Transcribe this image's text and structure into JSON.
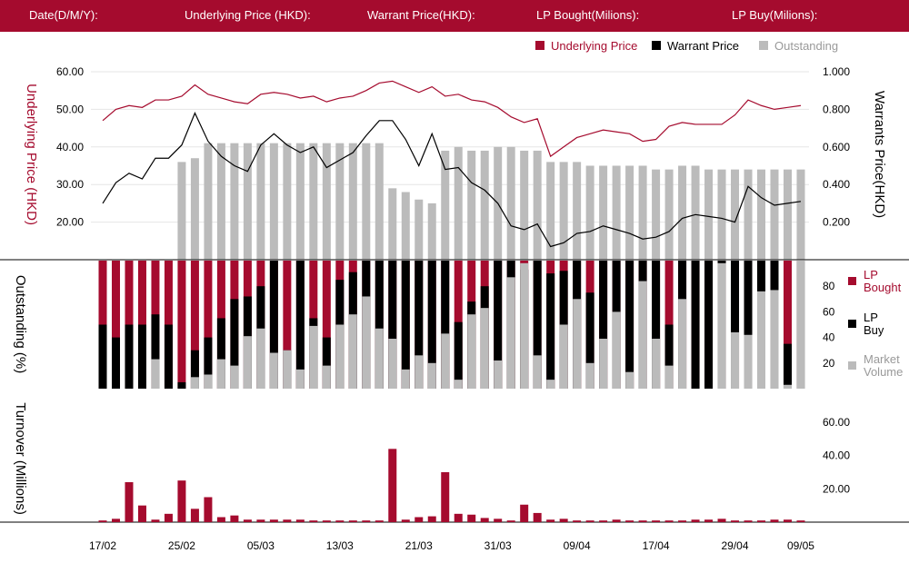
{
  "header": {
    "date_label": "Date(D/M/Y):",
    "underlying_label": "Underlying Price (HKD):",
    "warrant_label": "Warrant  Price(HKD):",
    "lp_bought_label": "LP Bought(Milions):",
    "lp_buy_label": "LP Buy(Milions):"
  },
  "colors": {
    "brand": "#a50b2e",
    "black": "#000000",
    "grey": "#bbbbbb"
  },
  "chart_data": [
    {
      "type": "line",
      "legend": [
        "Underlying Price",
        "Warrant  Price",
        "Outstanding"
      ],
      "legend_placement": "top-right",
      "ylabel_left": "Underlying Price (HKD)",
      "ylabel_right": "Warrants  Price(HKD)",
      "y_left_ticks": [
        "60.00",
        "50.00",
        "40.00",
        "30.00",
        "20.00"
      ],
      "y_right_ticks": [
        "1.000",
        "0.800",
        "0.600",
        "0.400",
        "0.200"
      ],
      "ylim_left": [
        10,
        60
      ],
      "ylim_right": [
        0,
        1
      ],
      "series": [
        {
          "name": "Underlying Price",
          "values": [
            47,
            50,
            51,
            50.5,
            52.5,
            52.5,
            53.5,
            56.5,
            54,
            53,
            52,
            51.5,
            54,
            54.5,
            54,
            53,
            53.5,
            52,
            53,
            53.5,
            55,
            57,
            57.5,
            56,
            54.5,
            56,
            53.5,
            54,
            52.5,
            52,
            50.5,
            48,
            46.5,
            47.5,
            37.5,
            40,
            42.5,
            43.5,
            44.5,
            44,
            43.5,
            41.5,
            42,
            45.5,
            46.5,
            46,
            46,
            46,
            48.5,
            52.5,
            51,
            50,
            50.5,
            51
          ]
        },
        {
          "name": "Warrant  Price",
          "values": [
            0.3,
            0.41,
            0.46,
            0.43,
            0.54,
            0.54,
            0.61,
            0.78,
            0.63,
            0.55,
            0.5,
            0.47,
            0.61,
            0.67,
            0.61,
            0.57,
            0.6,
            0.49,
            0.53,
            0.57,
            0.66,
            0.74,
            0.74,
            0.64,
            0.5,
            0.67,
            0.48,
            0.49,
            0.41,
            0.37,
            0.3,
            0.18,
            0.16,
            0.19,
            0.07,
            0.09,
            0.14,
            0.15,
            0.18,
            0.16,
            0.14,
            0.11,
            0.12,
            0.15,
            0.22,
            0.24,
            0.23,
            0.22,
            0.2,
            0.39,
            0.33,
            0.29,
            0.3,
            0.31
          ]
        },
        {
          "name": "Outstanding",
          "values": [
            0,
            0,
            0,
            0,
            0,
            0,
            26,
            27,
            31,
            31,
            31,
            31,
            31,
            31,
            31,
            31,
            31,
            31,
            31,
            31,
            31,
            31,
            19,
            18,
            16,
            15,
            29,
            30,
            29,
            29,
            30,
            30,
            29,
            29,
            26,
            26,
            26,
            25,
            25,
            25,
            25,
            25,
            24,
            24,
            25,
            25,
            24,
            24,
            24,
            24,
            24,
            24,
            24,
            24
          ]
        }
      ]
    },
    {
      "type": "bar",
      "ylabel": "Outstanding (%)",
      "y_ticks": [
        "80",
        "60",
        "40",
        "20"
      ],
      "ylim": [
        0,
        100
      ],
      "legend": [
        "LP Bought",
        "LP Buy",
        "Market Volume"
      ],
      "series": [
        {
          "name": "LP Bought",
          "values": [
            100,
            100,
            100,
            100,
            100,
            100,
            100,
            100,
            100,
            100,
            100,
            100,
            100,
            100,
            100,
            100,
            100,
            100,
            100,
            100,
            100,
            100,
            100,
            100,
            100,
            100,
            100,
            100,
            100,
            100,
            100,
            100,
            100,
            100,
            100,
            100,
            100,
            100,
            100,
            100,
            100,
            100,
            100,
            100,
            100,
            100,
            100,
            100,
            100,
            100,
            100,
            100,
            100,
            100
          ]
        },
        {
          "name": "LP Buy",
          "values": [
            50,
            40,
            50,
            50,
            58,
            50,
            5,
            30,
            40,
            55,
            70,
            72,
            80,
            100,
            30,
            100,
            55,
            40,
            85,
            91,
            100,
            100,
            100,
            100,
            100,
            100,
            100,
            52,
            68,
            80,
            100,
            100,
            93,
            100,
            90,
            92,
            100,
            75,
            100,
            100,
            100,
            100,
            100,
            50,
            100,
            100,
            100,
            100,
            100,
            100,
            100,
            100,
            35,
            100
          ]
        },
        {
          "name": "Market Volume",
          "values": [
            0,
            0,
            0,
            0,
            23,
            0,
            0,
            9,
            11,
            23,
            18,
            41,
            47,
            28,
            30,
            15,
            49,
            18,
            50,
            58,
            72,
            47,
            39,
            15,
            26,
            20,
            43,
            7,
            58,
            63,
            22,
            87,
            98,
            26,
            7,
            50,
            70,
            20,
            39,
            60,
            13,
            84,
            39,
            18,
            70,
            0,
            0,
            98,
            44,
            42,
            76,
            77,
            3,
            100
          ]
        }
      ]
    },
    {
      "type": "bar",
      "ylabel": "Turnover (Millions)",
      "y_ticks": [
        "60.00",
        "40.00",
        "20.00"
      ],
      "ylim": [
        0,
        60
      ],
      "series": [
        {
          "name": "Turnover",
          "values": [
            1,
            2,
            24,
            10,
            1.5,
            5,
            25,
            8,
            15,
            3,
            4,
            1.5,
            1.5,
            1.5,
            1.5,
            1.5,
            1,
            1,
            1,
            1,
            1,
            1,
            44,
            1.5,
            3,
            3.5,
            30,
            5,
            4.5,
            2.5,
            2,
            1,
            10.5,
            5.5,
            1.5,
            2,
            1,
            1,
            1,
            1.5,
            1,
            1,
            1,
            1,
            1,
            1.5,
            1.5,
            2,
            1,
            1,
            1,
            1.5,
            1.5,
            1
          ]
        }
      ],
      "x_tick_labels": [
        "17/02",
        "25/02",
        "05/03",
        "13/03",
        "21/03",
        "31/03",
        "09/04",
        "17/04",
        "29/04",
        "09/05"
      ]
    }
  ]
}
